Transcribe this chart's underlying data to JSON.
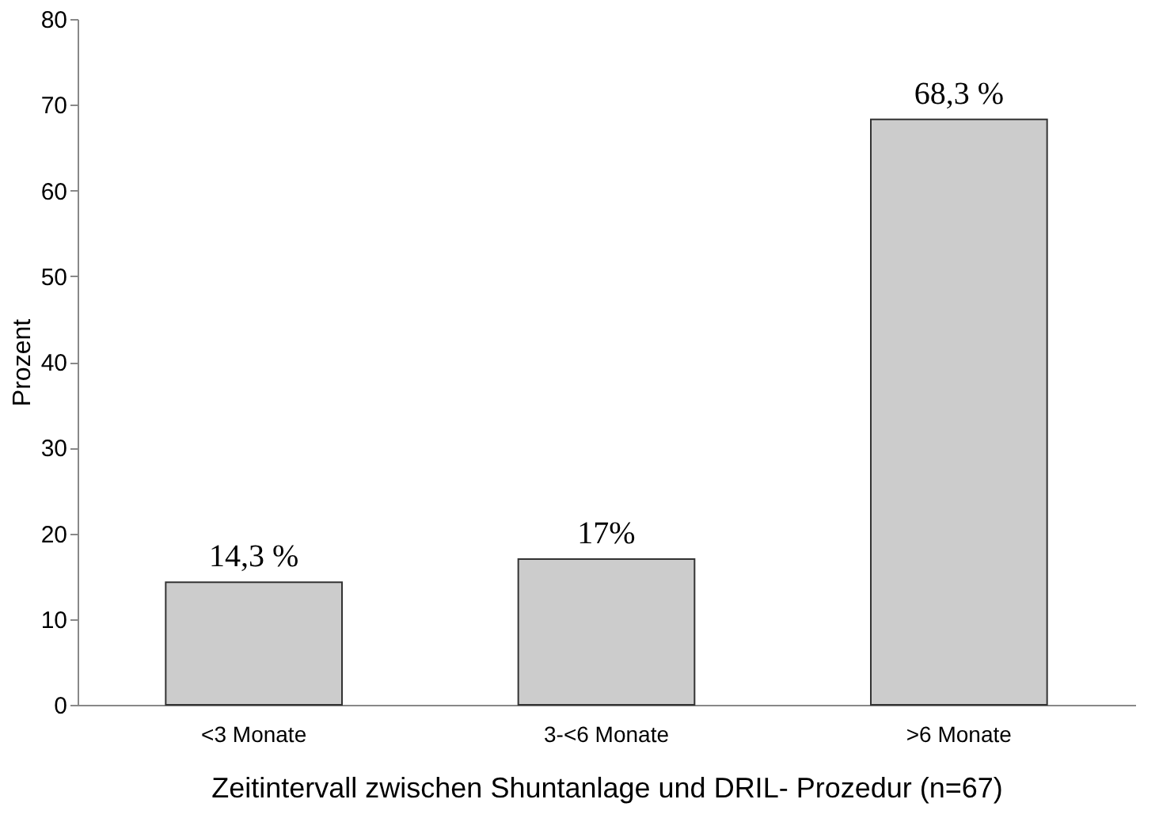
{
  "chart_data": {
    "type": "bar",
    "xlabel": "Zeitintervall zwischen Shuntanlage und DRIL- Prozedur (n=67)",
    "ylabel": "Prozent",
    "categories": [
      "<3 Monate",
      "3-<6 Monate",
      ">6 Monate"
    ],
    "values": [
      14.3,
      17,
      68.3
    ],
    "value_labels": [
      "14,3 %",
      "17%",
      "68,3 %"
    ],
    "color": "#cccccc",
    "ylim": [
      0,
      80
    ],
    "yticks": [
      0,
      10,
      20,
      30,
      40,
      50,
      60,
      70,
      80
    ],
    "grid": false
  }
}
